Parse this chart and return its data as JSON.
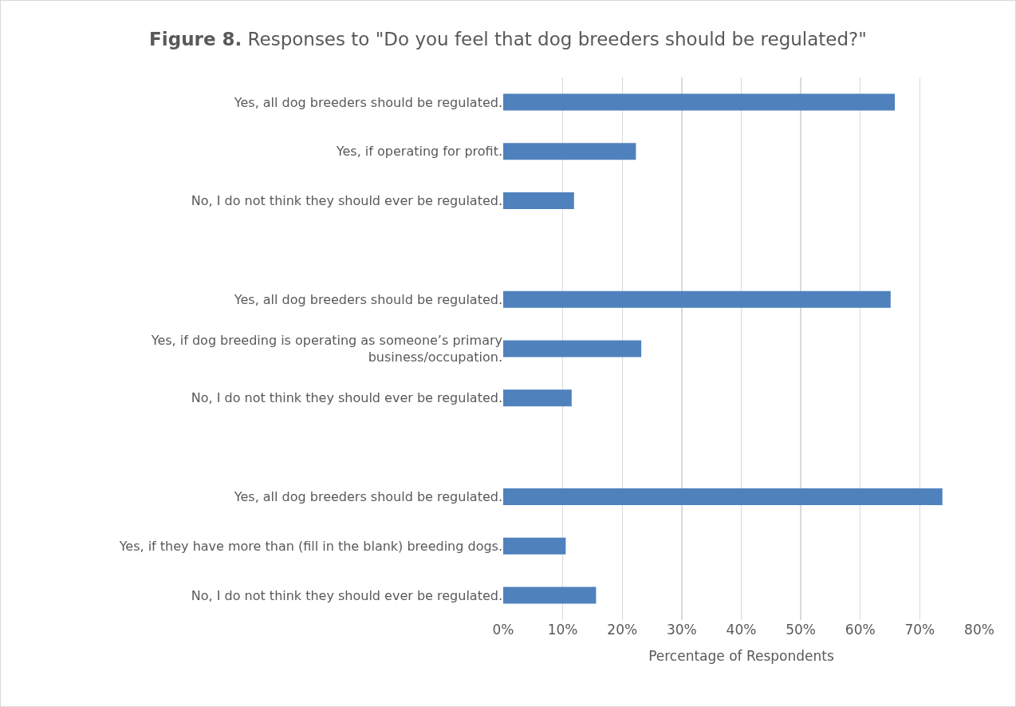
{
  "chart_data": {
    "type": "bar",
    "orientation": "horizontal",
    "title": "Figure 8. Responses to \"Do you feel that dog breeders should be regulated?\"",
    "xlabel": "Percentage of Respondents",
    "categories": [
      "Yes, all dog breeders should be regulated.",
      "Yes, if operating for profit.",
      "No, I do not think they should ever be regulated.",
      null,
      "Yes, all dog breeders should be regulated.",
      "Yes, if dog breeding is operating as someone’s primary business/occupation.",
      "No, I do not think they should ever be regulated.",
      null,
      "Yes, all dog breeders should be regulated.",
      "Yes, if they have more than (fill in the blank) breeding dogs.",
      "No, I do not think they should ever be regulated."
    ],
    "values": [
      65.8,
      22.3,
      11.9,
      null,
      65.1,
      23.2,
      11.5,
      null,
      73.8,
      10.5,
      15.6
    ],
    "color": "#4f81bd",
    "xlim": [
      0,
      80
    ],
    "xticks": [
      {
        "value": 0,
        "label": "0%"
      },
      {
        "value": 10,
        "label": "10%"
      },
      {
        "value": 20,
        "label": "20%"
      },
      {
        "value": 30,
        "label": "30%"
      },
      {
        "value": 40,
        "label": "40%"
      },
      {
        "value": 50,
        "label": "50%"
      },
      {
        "value": 60,
        "label": "60%"
      },
      {
        "value": 70,
        "label": "70%"
      },
      {
        "value": 80,
        "label": "80%"
      }
    ],
    "grid": "x"
  }
}
